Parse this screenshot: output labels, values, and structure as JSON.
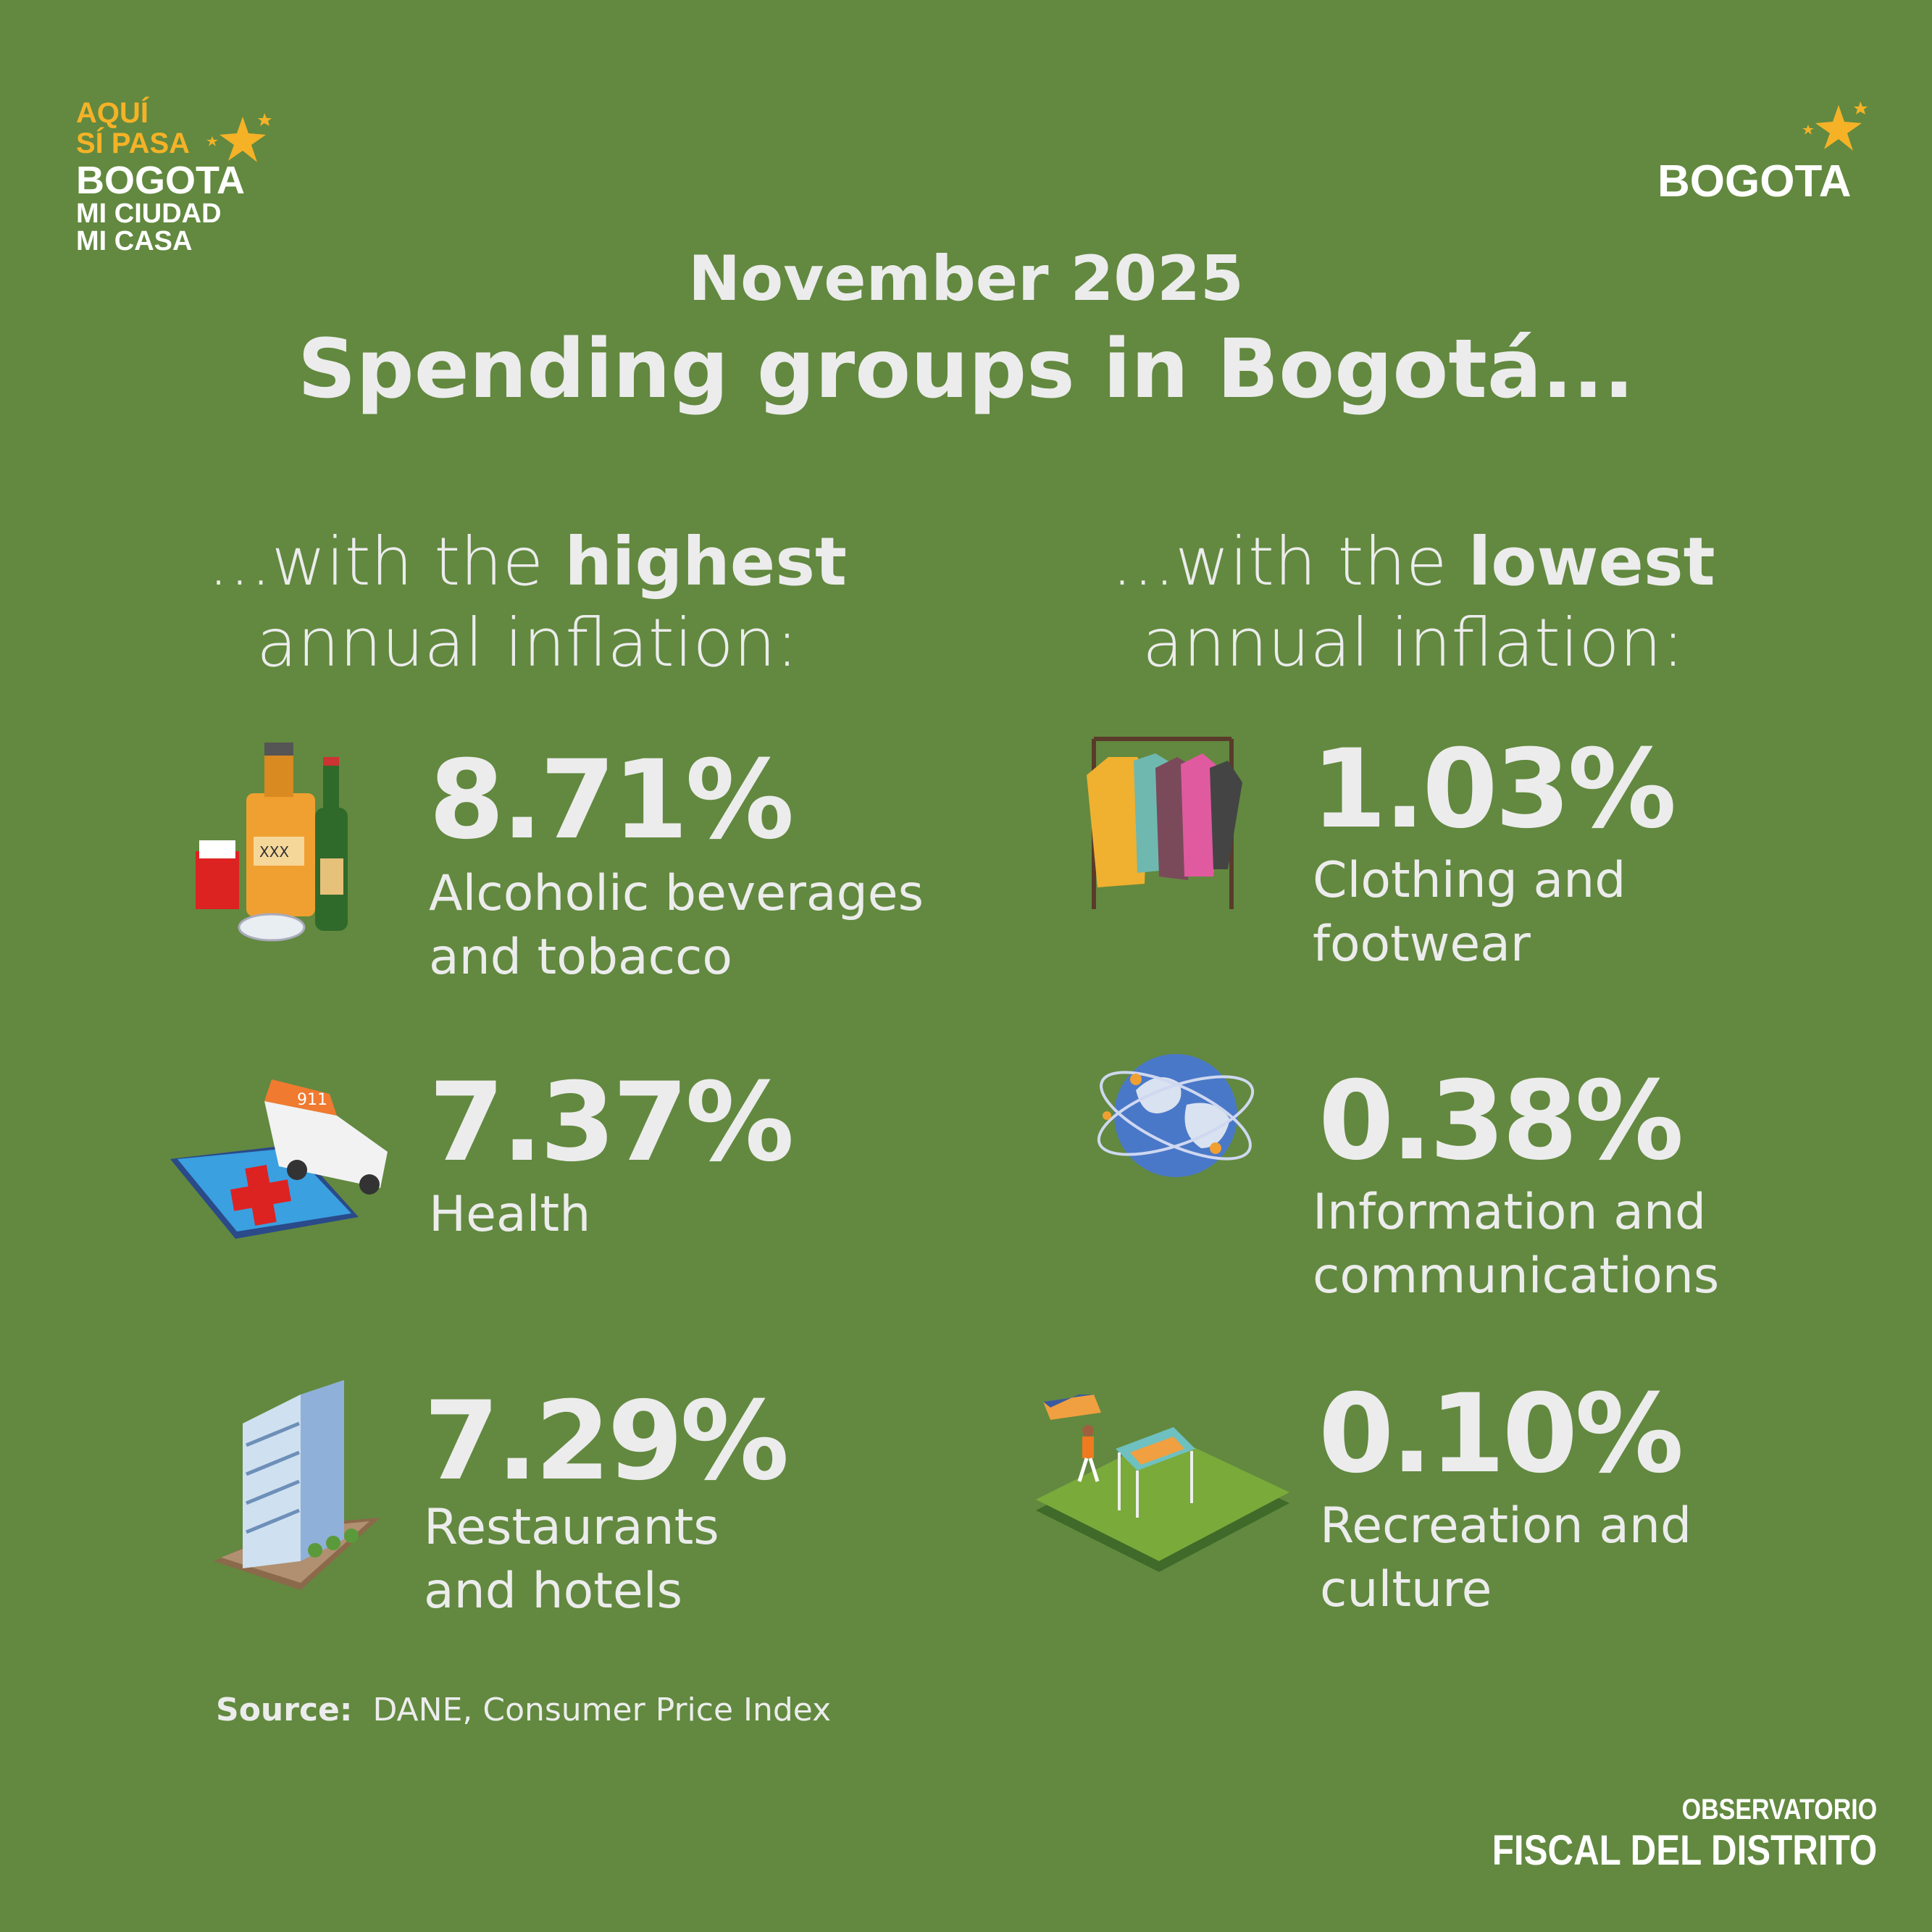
{
  "logos": {
    "left": {
      "line1": "AQUÍ",
      "line2": "SÍ PASA",
      "line3": "BOGOTA",
      "line4": "MI CIUDAD",
      "line5": "MI CASA"
    },
    "right": {
      "text": "BOGOTA"
    },
    "footer": {
      "line1": "OBSERVATORIO",
      "line2": "FISCAL DEL DISTRITO"
    }
  },
  "header": {
    "month": "November 2025",
    "title": "Spending groups in Bogotá..."
  },
  "highest": {
    "heading_pre": "...with the ",
    "heading_bold": "highest",
    "heading_line2": "annual inflation:",
    "items": [
      {
        "value": "8.71%",
        "label1": "Alcoholic beverages",
        "label2": "and tobacco",
        "icon": "alcohol-tobacco-icon"
      },
      {
        "value": "7.37%",
        "label1": "Health",
        "label2": "",
        "icon": "ambulance-health-icon"
      },
      {
        "value": "7.29%",
        "label1": "Restaurants",
        "label2": "and hotels",
        "icon": "hotel-icon"
      }
    ]
  },
  "lowest": {
    "heading_pre": "...with the ",
    "heading_bold": "lowest",
    "heading_line2": "annual inflation:",
    "items": [
      {
        "value": "1.03%",
        "label1": "Clothing and",
        "label2": "footwear",
        "icon": "clothing-rack-icon"
      },
      {
        "value": "0.38%",
        "label1": "Information and",
        "label2": "communications",
        "icon": "globe-network-icon"
      },
      {
        "value": "0.10%",
        "label1": "Recreation and",
        "label2": "culture",
        "icon": "park-recreation-icon"
      }
    ]
  },
  "source": {
    "label": "Source:",
    "text": "DANE, Consumer Price Index"
  },
  "colors": {
    "background": "#62893f",
    "text": "#ececec",
    "logo_yellow": "#f5b227"
  }
}
